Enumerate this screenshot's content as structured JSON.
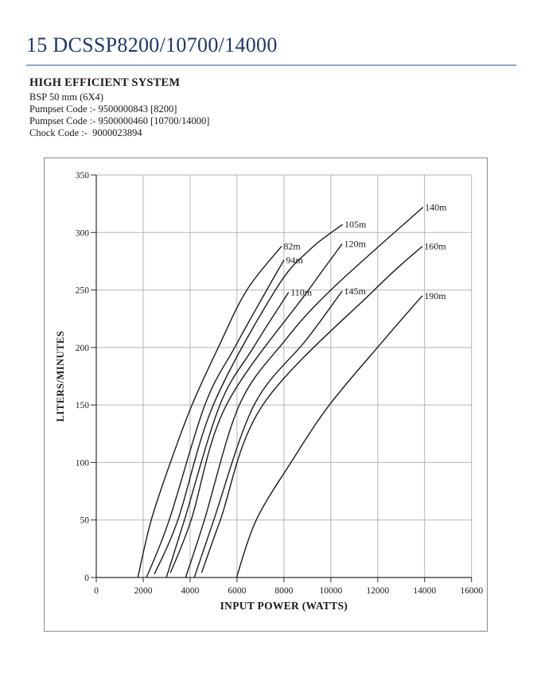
{
  "page": {
    "title": "15 DCSSP8200/10700/14000",
    "subtitle": "HIGH EFFICIENT SYSTEM",
    "info_lines": [
      "BSP 50 mm (6X4)",
      "Pumpset Code :- 9500000843 [8200]",
      "Pumpset Code :- 9500000460 [10700/14000]",
      "Chock Code :-  9000023894"
    ],
    "accent_color": "#1f3864",
    "rule_color": "#8fa9c7"
  },
  "chart_data": {
    "type": "line",
    "title": "",
    "xlabel": "INPUT POWER (WATTS)",
    "ylabel": "LITERS/MINUTES",
    "xlim": [
      0,
      16000
    ],
    "ylim": [
      0,
      350
    ],
    "x_tick_step": 2000,
    "y_tick_step": 50,
    "grid": true,
    "grid_color": "#b5b5b5",
    "axis_color": "#2f2f2f",
    "curve_color": "#1a1a1a",
    "legend_position": "curve-end-labels",
    "series": [
      {
        "name": "82m",
        "points": [
          [
            1770,
            0
          ],
          [
            2345,
            50
          ],
          [
            3160,
            100
          ],
          [
            4080,
            150
          ],
          [
            5200,
            200
          ],
          [
            6420,
            250
          ],
          [
            7900,
            288
          ]
        ]
      },
      {
        "name": "94m",
        "points": [
          [
            2140,
            0
          ],
          [
            3110,
            50
          ],
          [
            4630,
            150
          ],
          [
            5900,
            200
          ],
          [
            7270,
            250
          ],
          [
            8000,
            276
          ]
        ]
      },
      {
        "name": "105m",
        "points": [
          [
            2480,
            3
          ],
          [
            3480,
            50
          ],
          [
            4990,
            150
          ],
          [
            7640,
            250
          ],
          [
            9100,
            285
          ],
          [
            10500,
            307
          ]
        ]
      },
      {
        "name": "110m",
        "points": [
          [
            2990,
            0
          ],
          [
            3760,
            50
          ],
          [
            5270,
            150
          ],
          [
            6700,
            200
          ],
          [
            8200,
            248
          ]
        ]
      },
      {
        "name": "120m",
        "points": [
          [
            3160,
            4
          ],
          [
            4045,
            50
          ],
          [
            5550,
            150
          ],
          [
            9050,
            250
          ],
          [
            10480,
            290
          ]
        ]
      },
      {
        "name": "140m",
        "points": [
          [
            3810,
            0
          ],
          [
            4610,
            50
          ],
          [
            6100,
            150
          ],
          [
            8000,
            205
          ],
          [
            10000,
            250
          ],
          [
            13930,
            322
          ]
        ]
      },
      {
        "name": "145m",
        "points": [
          [
            4180,
            0
          ],
          [
            5010,
            50
          ],
          [
            6730,
            150
          ],
          [
            8970,
            207
          ],
          [
            10480,
            249
          ]
        ]
      },
      {
        "name": "160m",
        "points": [
          [
            4490,
            4
          ],
          [
            5290,
            50
          ],
          [
            7100,
            150
          ],
          [
            11850,
            250
          ],
          [
            13900,
            288
          ]
        ]
      },
      {
        "name": "190m",
        "points": [
          [
            5980,
            0
          ],
          [
            6820,
            50
          ],
          [
            8300,
            100
          ],
          [
            9940,
            150
          ],
          [
            12200,
            205
          ],
          [
            13900,
            245
          ]
        ]
      }
    ]
  }
}
